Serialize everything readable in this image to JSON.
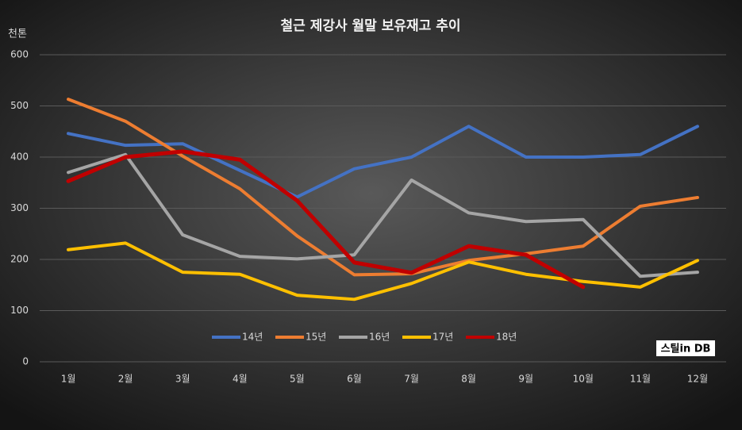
{
  "chart_data": {
    "type": "line",
    "title": "철근 제강사 월말 보유재고 추이",
    "y_unit": "천톤",
    "logo": "스틸in DB",
    "categories": [
      "1월",
      "2월",
      "3월",
      "4월",
      "5월",
      "6월",
      "7월",
      "8월",
      "9월",
      "10월",
      "11월",
      "12월"
    ],
    "series": [
      {
        "name": "14년",
        "color": "#4472c4",
        "values": [
          446,
          423,
          426,
          374,
          322,
          377,
          400,
          460,
          400,
          400,
          405,
          460
        ]
      },
      {
        "name": "15년",
        "color": "#ed7d31",
        "values": [
          513,
          470,
          402,
          338,
          246,
          170,
          172,
          198,
          211,
          226,
          304,
          321
        ]
      },
      {
        "name": "16년",
        "color": "#a5a5a5",
        "values": [
          370,
          405,
          248,
          206,
          201,
          209,
          355,
          291,
          274,
          278,
          167,
          175
        ]
      },
      {
        "name": "17년",
        "color": "#ffc000",
        "values": [
          219,
          232,
          175,
          171,
          130,
          122,
          153,
          195,
          171,
          157,
          146,
          198
        ]
      },
      {
        "name": "18년",
        "color": "#c00000",
        "values": [
          353,
          400,
          411,
          395,
          315,
          194,
          174,
          226,
          209,
          146,
          null,
          null
        ]
      }
    ],
    "ylim": [
      0,
      600
    ],
    "yticks": [
      0,
      100,
      200,
      300,
      400,
      500,
      600
    ],
    "grid": true,
    "legend": "bottom"
  }
}
